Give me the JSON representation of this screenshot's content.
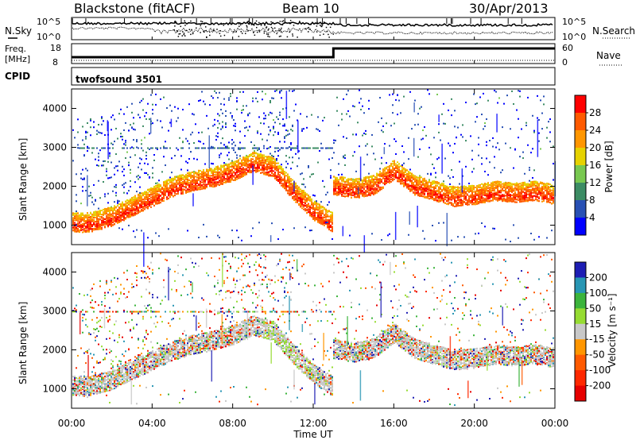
{
  "header": {
    "station": "Blackstone (fitACF)",
    "beam": "Beam 10",
    "date": "30/Apr/2013"
  },
  "aux_panels": {
    "nsky": {
      "label": "N.Sky",
      "ticks": [
        "10^5",
        "10^0"
      ]
    },
    "nsearch": {
      "label": "N.Search",
      "ticks": [
        "10^5",
        "10^0"
      ]
    },
    "freq": {
      "label_line1": "Freq.",
      "label_line2": "[MHz]",
      "ticks": [
        "18",
        "8"
      ]
    },
    "nave": {
      "label": "Nave",
      "ticks": [
        "60",
        "0"
      ]
    },
    "cpid": {
      "label": "CPID",
      "value": "twofsound 3501"
    }
  },
  "chart_data": [
    {
      "type": "heatmap",
      "name": "power",
      "ylabel": "Slant Range [km]",
      "xlabel": "Time UT",
      "x_ticks": [
        "00:00",
        "04:00",
        "08:00",
        "12:00",
        "16:00",
        "20:00",
        "00:00"
      ],
      "y_ticks": [
        1000,
        2000,
        3000,
        4000
      ],
      "ylim": [
        500,
        4500
      ],
      "xlim_hours": [
        0,
        24
      ],
      "colorbar": {
        "label": "Power [dB]",
        "ticks": [
          "28",
          "24",
          "20",
          "16",
          "12",
          "8",
          "4"
        ],
        "colors": [
          "#ff0000",
          "#ff5a00",
          "#ff9600",
          "#e6d200",
          "#78c850",
          "#3c8c64",
          "#2850b4",
          "#0000ff"
        ]
      },
      "bands": [
        {
          "hours": [
            0,
            0.5,
            1,
            2,
            3,
            4,
            5,
            6,
            7,
            8,
            9,
            10,
            11,
            12,
            12.9
          ],
          "range_km": [
            1000,
            980,
            1000,
            1150,
            1400,
            1650,
            1900,
            2050,
            2150,
            2300,
            2550,
            2400,
            1800,
            1300,
            1000
          ]
        },
        {
          "hours": [
            13,
            14,
            15,
            16,
            17,
            18,
            19,
            20,
            21,
            22,
            23,
            24
          ],
          "range_km": [
            1950,
            1850,
            1950,
            2350,
            1950,
            1800,
            1650,
            1700,
            1800,
            1750,
            1800,
            1700
          ]
        }
      ]
    },
    {
      "type": "heatmap",
      "name": "velocity",
      "ylabel": "Slant Range [km]",
      "xlabel": "Time UT",
      "x_ticks": [
        "00:00",
        "04:00",
        "08:00",
        "12:00",
        "16:00",
        "20:00",
        "00:00"
      ],
      "y_ticks": [
        1000,
        2000,
        3000,
        4000
      ],
      "ylim": [
        500,
        4500
      ],
      "colorbar": {
        "label": "Velocity [m s⁻¹]",
        "ticks": [
          "200",
          "100",
          "50",
          "15",
          "-15",
          "-50",
          "-100",
          "-200"
        ],
        "colors": [
          "#1e1eb4",
          "#2896b4",
          "#3cb43c",
          "#96dc32",
          "#c8c8c8",
          "#ff9600",
          "#ff5a00",
          "#ff2800",
          "#e60000"
        ]
      }
    }
  ]
}
